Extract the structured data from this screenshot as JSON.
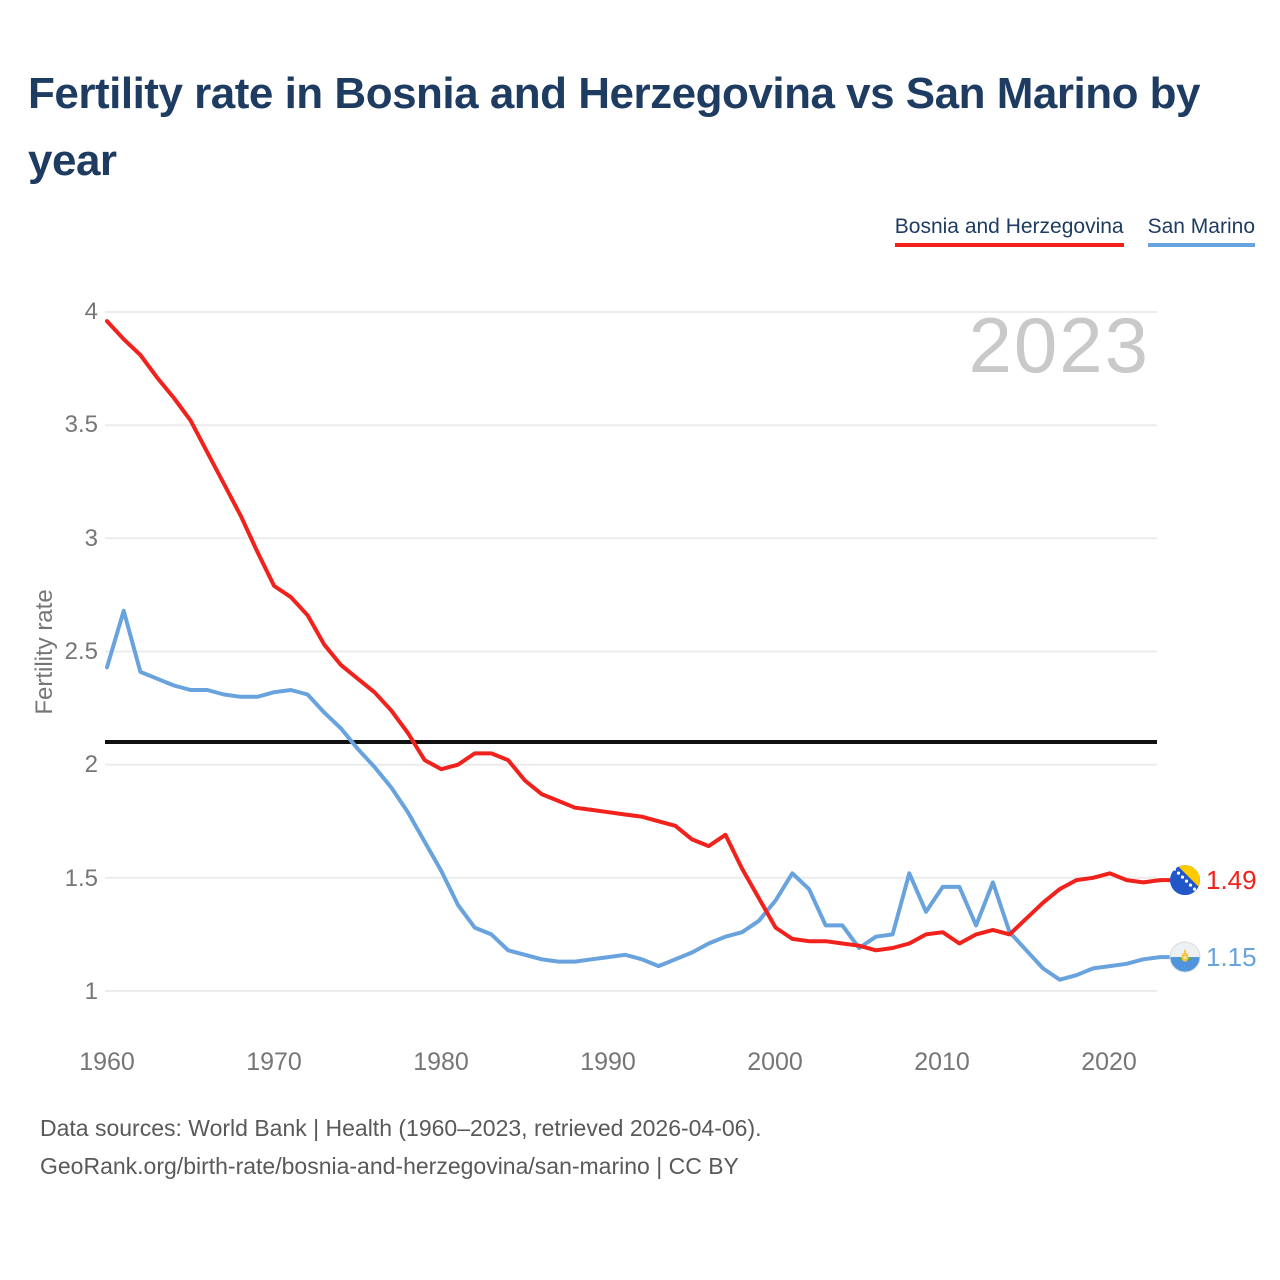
{
  "title": "Fertility rate in Bosnia and Herzegovina vs San Marino by year",
  "watermark": "2023",
  "colors": {
    "accent_red": "#f1211c",
    "accent_blue": "#69a3dd",
    "title_navy": "#1e3c61",
    "grid": "#ececec",
    "replacement_line": "#111111",
    "tick_gray": "#767676",
    "watermark_gray": "#c9c9c9",
    "footer_gray": "#595959"
  },
  "legend": [
    {
      "label": "Bosnia and Herzegovina",
      "color": "#f1211c"
    },
    {
      "label": "San Marino",
      "color": "#69a3dd"
    }
  ],
  "y_axis": {
    "label": "Fertility rate",
    "ticks": [
      "4",
      "3.5",
      "3",
      "2.5",
      "2",
      "1.5",
      "1"
    ]
  },
  "x_axis": {
    "ticks": [
      "1960",
      "1970",
      "1980",
      "1990",
      "2000",
      "2010",
      "2020"
    ],
    "tick_years": [
      1960,
      1970,
      1980,
      1990,
      2000,
      2010,
      2020
    ]
  },
  "baseline": {
    "value": 2.1
  },
  "chart_data": {
    "type": "line",
    "title": "Fertility rate in Bosnia and Herzegovina vs San Marino by year",
    "xlabel": "year",
    "ylabel": "Fertility rate",
    "xlim": [
      1960,
      2023
    ],
    "ylim": [
      1,
      4
    ],
    "yticks": [
      4,
      3.5,
      3,
      2.5,
      2,
      1.5,
      1
    ],
    "grid": true,
    "legend_position": "top-right",
    "reference_line": 2.1,
    "x": [
      1960,
      1961,
      1962,
      1963,
      1964,
      1965,
      1966,
      1967,
      1968,
      1969,
      1970,
      1971,
      1972,
      1973,
      1974,
      1975,
      1976,
      1977,
      1978,
      1979,
      1980,
      1981,
      1982,
      1983,
      1984,
      1985,
      1986,
      1987,
      1988,
      1989,
      1990,
      1991,
      1992,
      1993,
      1994,
      1995,
      1996,
      1997,
      1998,
      1999,
      2000,
      2001,
      2002,
      2003,
      2004,
      2005,
      2006,
      2007,
      2008,
      2009,
      2010,
      2011,
      2012,
      2013,
      2014,
      2015,
      2016,
      2017,
      2018,
      2019,
      2020,
      2021,
      2022,
      2023
    ],
    "series": [
      {
        "name": "Bosnia and Herzegovina",
        "color": "#f1211c",
        "end_label": "1.49",
        "flag_icon": "bosnia-and-herzegovina-flag-icon",
        "values": [
          3.96,
          3.88,
          3.81,
          3.71,
          3.62,
          3.52,
          3.38,
          3.24,
          3.1,
          2.94,
          2.79,
          2.74,
          2.66,
          2.53,
          2.44,
          2.38,
          2.32,
          2.24,
          2.14,
          2.02,
          1.98,
          2.0,
          2.05,
          2.05,
          2.02,
          1.93,
          1.87,
          1.84,
          1.81,
          1.8,
          1.79,
          1.78,
          1.77,
          1.75,
          1.73,
          1.67,
          1.64,
          1.69,
          1.54,
          1.41,
          1.28,
          1.23,
          1.22,
          1.22,
          1.21,
          1.2,
          1.18,
          1.19,
          1.21,
          1.25,
          1.26,
          1.21,
          1.25,
          1.27,
          1.25,
          1.32,
          1.39,
          1.45,
          1.49,
          1.5,
          1.52,
          1.49,
          1.48,
          1.49
        ]
      },
      {
        "name": "San Marino",
        "color": "#69a3dd",
        "end_label": "1.15",
        "flag_icon": "san-marino-flag-icon",
        "values": [
          2.43,
          2.68,
          2.41,
          2.38,
          2.35,
          2.33,
          2.33,
          2.31,
          2.3,
          2.3,
          2.32,
          2.33,
          2.31,
          2.23,
          2.16,
          2.07,
          1.99,
          1.9,
          1.79,
          1.66,
          1.53,
          1.38,
          1.28,
          1.25,
          1.18,
          1.16,
          1.14,
          1.13,
          1.13,
          1.14,
          1.15,
          1.16,
          1.14,
          1.11,
          1.14,
          1.17,
          1.21,
          1.24,
          1.26,
          1.31,
          1.4,
          1.52,
          1.45,
          1.29,
          1.29,
          1.19,
          1.24,
          1.25,
          1.52,
          1.35,
          1.46,
          1.46,
          1.29,
          1.48,
          1.26,
          1.18,
          1.1,
          1.05,
          1.07,
          1.1,
          1.11,
          1.12,
          1.14,
          1.15
        ]
      }
    ]
  },
  "footer": {
    "line1": "Data sources: World Bank | Health (1960–2023, retrieved 2026-04-06).",
    "line2": "GeoRank.org/birth-rate/bosnia-and-herzegovina/san-marino | CC BY"
  }
}
